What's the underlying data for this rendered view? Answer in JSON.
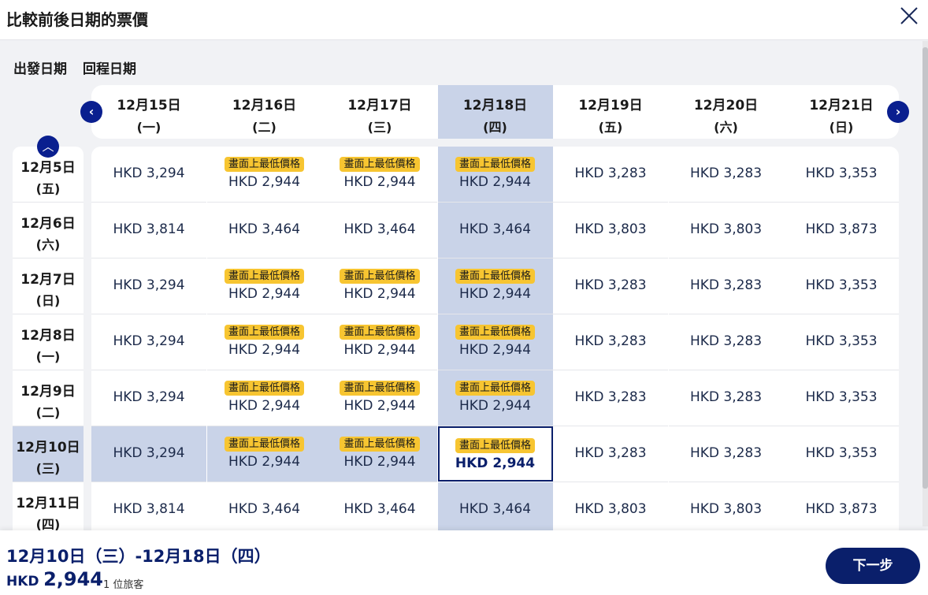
{
  "header": {
    "title": "比較前後日期的票價"
  },
  "labels": {
    "depart": "出發日期",
    "return": "回程日期"
  },
  "columns": [
    {
      "date": "12月15日",
      "weekday": "(一)"
    },
    {
      "date": "12月16日",
      "weekday": "(二)"
    },
    {
      "date": "12月17日",
      "weekday": "(三)"
    },
    {
      "date": "12月18日",
      "weekday": "(四)"
    },
    {
      "date": "12月19日",
      "weekday": "(五)"
    },
    {
      "date": "12月20日",
      "weekday": "(六)"
    },
    {
      "date": "12月21日",
      "weekday": "(日)"
    }
  ],
  "rows": [
    {
      "date": "12月5日",
      "weekday": "(五)"
    },
    {
      "date": "12月6日",
      "weekday": "(六)"
    },
    {
      "date": "12月7日",
      "weekday": "(日)"
    },
    {
      "date": "12月8日",
      "weekday": "(一)"
    },
    {
      "date": "12月9日",
      "weekday": "(二)"
    },
    {
      "date": "12月10日",
      "weekday": "(三)"
    },
    {
      "date": "12月11日",
      "weekday": "(四)"
    }
  ],
  "lowest_tag": "畫面上最低價格",
  "selected": {
    "row": 5,
    "col": 3
  },
  "prices": [
    [
      "HKD 3,294",
      "HKD 2,944",
      "HKD 2,944",
      "HKD 2,944",
      "HKD 3,283",
      "HKD 3,283",
      "HKD 3,353"
    ],
    [
      "HKD 3,814",
      "HKD 3,464",
      "HKD 3,464",
      "HKD 3,464",
      "HKD 3,803",
      "HKD 3,803",
      "HKD 3,873"
    ],
    [
      "HKD 3,294",
      "HKD 2,944",
      "HKD 2,944",
      "HKD 2,944",
      "HKD 3,283",
      "HKD 3,283",
      "HKD 3,353"
    ],
    [
      "HKD 3,294",
      "HKD 2,944",
      "HKD 2,944",
      "HKD 2,944",
      "HKD 3,283",
      "HKD 3,283",
      "HKD 3,353"
    ],
    [
      "HKD 3,294",
      "HKD 2,944",
      "HKD 2,944",
      "HKD 2,944",
      "HKD 3,283",
      "HKD 3,283",
      "HKD 3,353"
    ],
    [
      "HKD 3,294",
      "HKD 2,944",
      "HKD 2,944",
      "HKD 2,944",
      "HKD 3,283",
      "HKD 3,283",
      "HKD 3,353"
    ],
    [
      "HKD 3,814",
      "HKD 3,464",
      "HKD 3,464",
      "HKD 3,464",
      "HKD 3,803",
      "HKD 3,803",
      "HKD 3,873"
    ]
  ],
  "lowest": [
    [
      false,
      true,
      true,
      true,
      false,
      false,
      false
    ],
    [
      false,
      false,
      false,
      false,
      false,
      false,
      false
    ],
    [
      false,
      true,
      true,
      true,
      false,
      false,
      false
    ],
    [
      false,
      true,
      true,
      true,
      false,
      false,
      false
    ],
    [
      false,
      true,
      true,
      true,
      false,
      false,
      false
    ],
    [
      false,
      true,
      true,
      true,
      false,
      false,
      false
    ],
    [
      false,
      false,
      false,
      false,
      false,
      false,
      false
    ]
  ],
  "footer": {
    "dates": "12月10日（三）-12月18日（四）",
    "currency": "HKD",
    "amount": "2,944",
    "passengers": "1 位旅客",
    "next_label": "下一步"
  },
  "icons": {
    "close": "close-icon",
    "prev": "chevron-left-icon",
    "next": "chevron-right-icon",
    "up": "chevron-up-icon"
  },
  "colors": {
    "accent": "#0a1f6b",
    "highlight": "#c9d3e8",
    "tag": "#f7c531"
  }
}
